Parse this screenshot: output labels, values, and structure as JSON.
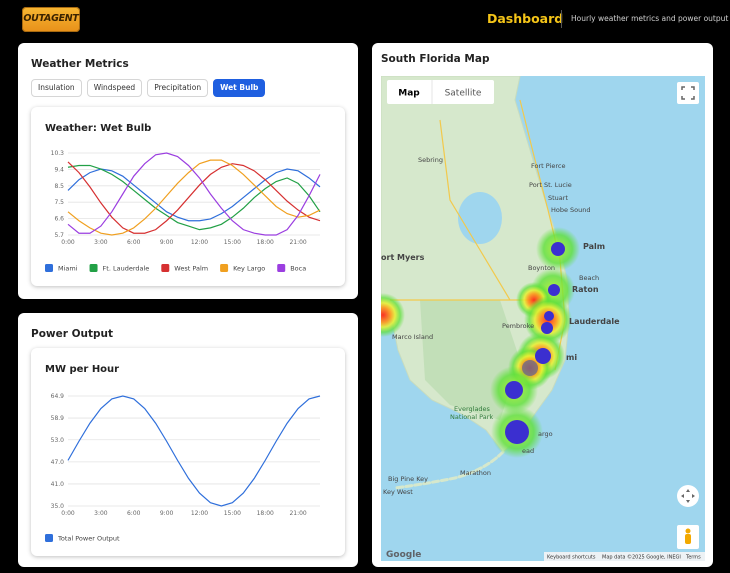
{
  "header": {
    "logo": "OUTAGENT",
    "title": "Dashboard",
    "subtitle": "Hourly weather metrics and power output"
  },
  "weather_panel": {
    "title": "Weather Metrics",
    "tabs": [
      "Insulation",
      "Windspeed",
      "Precipitation",
      "Wet Bulb"
    ],
    "active_tab": 3
  },
  "power_panel": {
    "title": "Power Output"
  },
  "map_panel": {
    "title": "South Florida Map",
    "map_types": [
      "Map",
      "Satellite"
    ],
    "places": [
      "Sebring",
      "Fort Pierce",
      "Port St. Lucie",
      "Stuart",
      "Hobe Sound",
      "ort Myers",
      "Palm",
      "Boynton",
      "Beach",
      "Raton",
      "Lauderdale",
      "Pembroke",
      "Marco Island",
      "mi",
      "Everglades",
      "National Park",
      "argo",
      "ead",
      "Marathon",
      "Big Pine Key",
      "Key West"
    ],
    "logo": "Google",
    "attribution": [
      "Keyboard shortcuts",
      "Map data ©2025 Google, INEGI",
      "Terms"
    ]
  },
  "chart_data": [
    {
      "type": "line",
      "title": "Weather: Wet Bulb",
      "categories": [
        "0:00",
        null,
        null,
        "3:00",
        null,
        null,
        "6:00",
        null,
        null,
        "9:00",
        null,
        null,
        "12:00",
        null,
        null,
        "15:00",
        null,
        null,
        "18:00",
        null,
        null,
        "21:00",
        null,
        null
      ],
      "series": [
        {
          "name": "Miami",
          "color": "#2f6fdb",
          "values": [
            8.2,
            8.8,
            9.2,
            9.4,
            9.3,
            9.0,
            8.5,
            8.0,
            7.5,
            7.0,
            6.7,
            6.5,
            6.5,
            6.6,
            6.9,
            7.3,
            7.8,
            8.3,
            8.8,
            9.2,
            9.4,
            9.3,
            8.9,
            8.4
          ]
        },
        {
          "name": "Ft. Lauderdale",
          "color": "#22a046",
          "values": [
            9.5,
            9.6,
            9.6,
            9.4,
            9.1,
            8.7,
            8.2,
            7.7,
            7.2,
            6.8,
            6.4,
            6.2,
            6.0,
            6.1,
            6.3,
            6.7,
            7.2,
            7.8,
            8.3,
            8.7,
            8.9,
            8.6,
            7.9,
            7.0
          ]
        },
        {
          "name": "West Palm",
          "color": "#d63031",
          "values": [
            9.8,
            9.2,
            8.4,
            7.5,
            6.7,
            6.1,
            5.8,
            5.8,
            6.0,
            6.5,
            7.1,
            7.8,
            8.5,
            9.1,
            9.5,
            9.7,
            9.6,
            9.3,
            8.8,
            8.2,
            7.6,
            7.1,
            6.7,
            6.5
          ]
        },
        {
          "name": "Key Largo",
          "color": "#f0a020",
          "values": [
            7.0,
            6.5,
            6.1,
            5.8,
            5.7,
            5.8,
            6.1,
            6.6,
            7.2,
            7.9,
            8.6,
            9.2,
            9.7,
            9.9,
            9.9,
            9.6,
            9.1,
            8.5,
            7.9,
            7.3,
            6.9,
            6.7,
            6.8,
            7.1
          ]
        },
        {
          "name": "Boca",
          "color": "#9b3ee0",
          "values": [
            6.3,
            5.8,
            5.8,
            6.2,
            7.0,
            8.0,
            9.0,
            9.7,
            10.2,
            10.3,
            10.1,
            9.6,
            8.9,
            8.0,
            7.2,
            6.5,
            6.0,
            5.8,
            5.7,
            5.7,
            6.0,
            6.8,
            7.9,
            9.1
          ]
        }
      ],
      "ylim": [
        5.7,
        10.3
      ],
      "yticks": [
        5.7,
        {
          "value": 6.62,
          "label": "6.6"
        },
        {
          "value": 7.54,
          "label": "7.5"
        },
        {
          "value": 8.46,
          "label": "8.5"
        },
        {
          "value": 9.38,
          "label": "9.4"
        },
        10.3
      ],
      "grid": true,
      "legend": "bottom"
    },
    {
      "type": "line",
      "title": "MW per Hour",
      "categories": [
        "0:00",
        null,
        null,
        "3:00",
        null,
        null,
        "6:00",
        null,
        null,
        "9:00",
        null,
        null,
        "12:00",
        null,
        null,
        "15:00",
        null,
        null,
        "18:00",
        null,
        null,
        "21:00",
        null,
        null
      ],
      "series": [
        {
          "name": "Total Power Output",
          "color": "#2f6fdb",
          "values": [
            47.4,
            52.6,
            57.5,
            61.5,
            64.1,
            64.9,
            64.1,
            61.5,
            57.5,
            52.6,
            47.4,
            42.5,
            38.5,
            35.9,
            35.0,
            35.9,
            38.5,
            42.5,
            47.4,
            52.6,
            57.5,
            61.5,
            64.1,
            64.9
          ]
        }
      ],
      "ylim": [
        35.0,
        64.9
      ],
      "yticks": [
        {
          "value": 35.0,
          "label": "35.0"
        },
        {
          "value": 41.0,
          "label": "41.0"
        },
        {
          "value": 47.0,
          "label": "47.0"
        },
        {
          "value": 53.0,
          "label": "53.0"
        },
        58.9,
        64.9
      ],
      "grid": true,
      "legend": "bottom"
    }
  ]
}
